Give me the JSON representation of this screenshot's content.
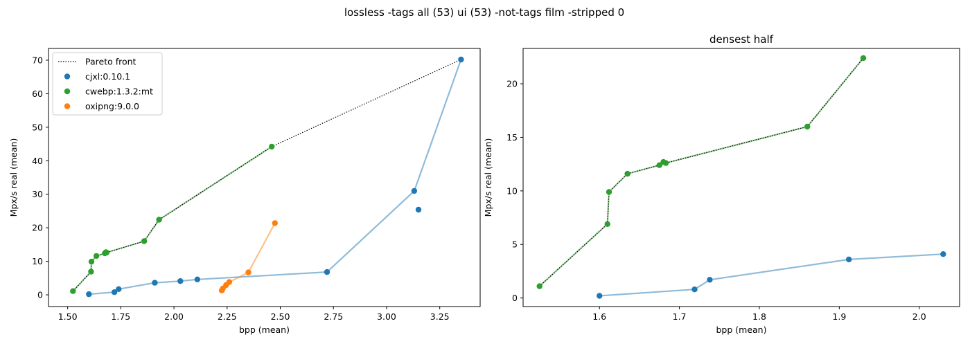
{
  "figure": {
    "suptitle": "lossless -tags all (53) ui (53) -not-tags film -stripped 0"
  },
  "colors": {
    "cjxl": "#1f77b4",
    "cwebp": "#2ca02c",
    "oxipng": "#ff7f0e",
    "pareto": "#000000"
  },
  "chart_data": [
    {
      "type": "scatter",
      "title": "",
      "xlabel": "bpp (mean)",
      "ylabel": "Mpx/s real (mean)",
      "xlim": [
        1.41,
        3.44
      ],
      "ylim": [
        -3.5,
        73.5
      ],
      "xticks": [
        1.5,
        1.75,
        2.0,
        2.25,
        2.5,
        2.75,
        3.0,
        3.25
      ],
      "xtick_labels": [
        "1.50",
        "1.75",
        "2.00",
        "2.25",
        "2.50",
        "2.75",
        "3.00",
        "3.25"
      ],
      "yticks": [
        0,
        10,
        20,
        30,
        40,
        50,
        60,
        70
      ],
      "ytick_labels": [
        "0",
        "10",
        "20",
        "30",
        "40",
        "50",
        "60",
        "70"
      ],
      "legend": {
        "placement": "top-left",
        "entries": [
          {
            "label": "Pareto front",
            "kind": "line"
          },
          {
            "label": "cjxl:0.10.1",
            "kind": "marker",
            "color_key": "cjxl"
          },
          {
            "label": "cwebp:1.3.2:mt",
            "kind": "marker",
            "color_key": "cwebp"
          },
          {
            "label": "oxipng:9.0.0",
            "kind": "marker",
            "color_key": "oxipng"
          }
        ]
      },
      "series": [
        {
          "name": "cjxl:0.10.1",
          "color_key": "cjxl",
          "x": [
            1.6,
            1.72,
            1.74,
            1.91,
            2.03,
            2.11,
            2.72,
            3.13,
            3.35,
            3.15
          ],
          "y": [
            0.2,
            0.8,
            1.7,
            3.6,
            4.1,
            4.6,
            6.8,
            31.0,
            70.2,
            25.4
          ],
          "line_points": 9
        },
        {
          "name": "cwebp:1.3.2:mt",
          "color_key": "cwebp",
          "x": [
            1.525,
            1.61,
            1.612,
            1.635,
            1.675,
            1.68,
            1.683,
            1.86,
            1.93,
            2.46
          ],
          "y": [
            1.1,
            6.9,
            9.9,
            11.6,
            12.4,
            12.7,
            12.6,
            16.0,
            22.4,
            44.2
          ],
          "line_points": 10
        },
        {
          "name": "oxipng:9.0.0",
          "color_key": "oxipng",
          "x": [
            2.225,
            2.23,
            2.245,
            2.26,
            2.35,
            2.475
          ],
          "y": [
            1.3,
            1.9,
            2.9,
            3.8,
            6.7,
            21.4
          ],
          "line_points": 6
        }
      ],
      "pareto_front": {
        "x": [
          1.525,
          1.61,
          1.612,
          1.635,
          1.675,
          1.68,
          1.683,
          1.86,
          1.93,
          2.46,
          3.35
        ],
        "y": [
          1.1,
          6.9,
          9.9,
          11.6,
          12.4,
          12.7,
          12.6,
          16.0,
          22.4,
          44.2,
          70.2
        ]
      }
    },
    {
      "type": "scatter",
      "title": "densest half",
      "xlabel": "bpp (mean)",
      "ylabel": "Mpx/s real (mean)",
      "xlim": [
        1.5045,
        2.0505
      ],
      "ylim": [
        -0.8,
        23.3
      ],
      "xticks": [
        1.6,
        1.7,
        1.8,
        1.9,
        2.0
      ],
      "xtick_labels": [
        "1.6",
        "1.7",
        "1.8",
        "1.9",
        "2.0"
      ],
      "yticks": [
        0,
        5,
        10,
        15,
        20
      ],
      "ytick_labels": [
        "0",
        "5",
        "10",
        "15",
        "20"
      ],
      "series": [
        {
          "name": "cjxl:0.10.1",
          "color_key": "cjxl",
          "x": [
            1.6,
            1.719,
            1.738,
            1.912,
            2.03
          ],
          "y": [
            0.2,
            0.8,
            1.7,
            3.6,
            4.1
          ],
          "line_points": 5
        },
        {
          "name": "cwebp:1.3.2:mt",
          "color_key": "cwebp",
          "x": [
            1.525,
            1.61,
            1.612,
            1.635,
            1.675,
            1.68,
            1.683,
            1.86,
            1.93
          ],
          "y": [
            1.1,
            6.9,
            9.9,
            11.6,
            12.4,
            12.7,
            12.6,
            16.0,
            22.4
          ],
          "line_points": 9
        }
      ],
      "pareto_front": {
        "x": [
          1.525,
          1.61,
          1.612,
          1.635,
          1.675,
          1.68,
          1.683,
          1.86,
          1.93
        ],
        "y": [
          1.1,
          6.9,
          9.9,
          11.6,
          12.4,
          12.7,
          12.6,
          16.0,
          22.4
        ]
      }
    }
  ]
}
